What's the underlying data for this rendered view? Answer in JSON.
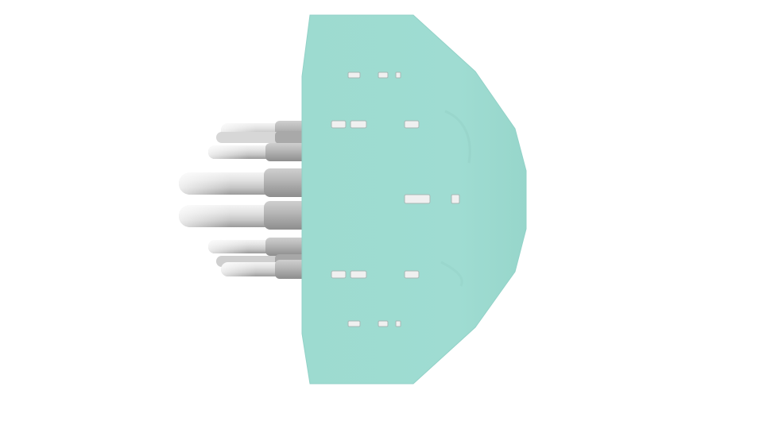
{
  "scene": {
    "colors": {
      "background": "#ffffff",
      "plate": "#9edbd1",
      "plate_edge": "#93d2c8",
      "rod_light": "#e6e6e6",
      "rod_mid": "#c9c9c9",
      "rod_dark": "#9c9c9c",
      "slot_fill": "#f0f0f0",
      "slot_shadow": "#a7b8b5"
    }
  }
}
